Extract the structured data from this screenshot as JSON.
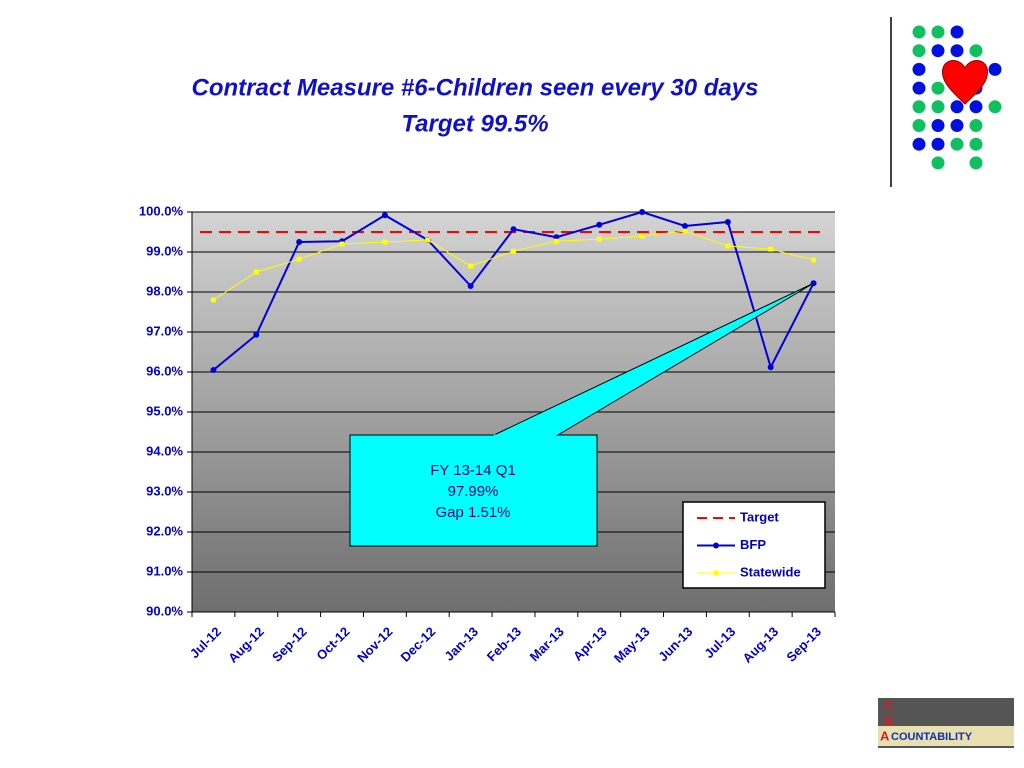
{
  "chart_data": {
    "type": "line",
    "title": "Contract Measure #6-Children seen every 30 days",
    "subtitle": "Target 99.5%",
    "categories": [
      "Jul-12",
      "Aug-12",
      "Sep-12",
      "Oct-12",
      "Nov-12",
      "Dec-12",
      "Jan-13",
      "Feb-13",
      "Mar-13",
      "Apr-13",
      "May-13",
      "Jun-13",
      "Jul-13",
      "Aug-13",
      "Sep-13"
    ],
    "series": [
      {
        "name": "Target",
        "color": "#ff0000",
        "dashed": true,
        "marker": "none",
        "values": [
          99.5,
          99.5,
          99.5,
          99.5,
          99.5,
          99.5,
          99.5,
          99.5,
          99.5,
          99.5,
          99.5,
          99.5,
          99.5,
          99.5,
          99.5
        ]
      },
      {
        "name": "BFP",
        "color": "#0000e0",
        "marker": "circle",
        "values": [
          96.05,
          96.93,
          99.25,
          99.27,
          99.92,
          99.3,
          98.15,
          99.57,
          99.37,
          99.68,
          100.0,
          99.65,
          99.75,
          96.12,
          98.22
        ]
      },
      {
        "name": "Statewide",
        "color": "#ffff00",
        "marker": "square",
        "values": [
          97.8,
          98.5,
          98.82,
          99.2,
          99.25,
          99.3,
          98.65,
          99.02,
          99.27,
          99.32,
          99.4,
          99.52,
          99.15,
          99.07,
          98.8
        ]
      }
    ],
    "ylim": [
      90,
      100
    ],
    "yticks": [
      {
        "value": 90,
        "label": "90.0%"
      },
      {
        "value": 91,
        "label": "91.0%"
      },
      {
        "value": 92,
        "label": "92.0%"
      },
      {
        "value": 93,
        "label": "93.0%"
      },
      {
        "value": 94,
        "label": "94.0%"
      },
      {
        "value": 95,
        "label": "95.0%"
      },
      {
        "value": 96,
        "label": "96.0%"
      },
      {
        "value": 97,
        "label": "97.0%"
      },
      {
        "value": 98,
        "label": "98.0%"
      },
      {
        "value": 99,
        "label": "99.0%"
      },
      {
        "value": 100,
        "label": "100.0%"
      }
    ],
    "grid": true,
    "legend": "lower right",
    "annotation": [
      "FY 13-14 Q1",
      "97.99%",
      "Gap 1.51%"
    ]
  },
  "logo": {
    "letters": [
      "C",
      "B",
      "A"
    ],
    "wordmark": "COUNTABILITY"
  }
}
